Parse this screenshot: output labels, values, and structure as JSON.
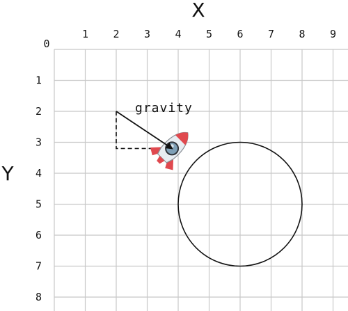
{
  "diagram": {
    "x_axis_label": "X",
    "y_axis_label": "Y",
    "origin_label": "0",
    "x_ticks": [
      "1",
      "2",
      "3",
      "4",
      "5",
      "6",
      "7",
      "8",
      "9"
    ],
    "y_ticks": [
      "1",
      "2",
      "3",
      "4",
      "5",
      "6",
      "7",
      "8"
    ],
    "grid": true,
    "x_range": [
      0,
      9.5
    ],
    "y_range": [
      0,
      8.5
    ],
    "y_axis_direction": "down",
    "colors": {
      "grid": "#c8c8c8",
      "ink": "#111111",
      "rocket_body": "#e8edf2",
      "rocket_fin": "#e0494f",
      "rocket_window": "#7e9fb6"
    },
    "circle": {
      "center": [
        6,
        5
      ],
      "radius": 2
    },
    "gravity": {
      "label": "gravity",
      "from": [
        2,
        2
      ],
      "to": [
        3.8,
        3.2
      ],
      "component_corner": [
        2,
        3.2
      ]
    },
    "rocket": {
      "icon": "rocket-icon",
      "position": [
        3.8,
        3.2
      ],
      "heading": "up-right"
    }
  }
}
